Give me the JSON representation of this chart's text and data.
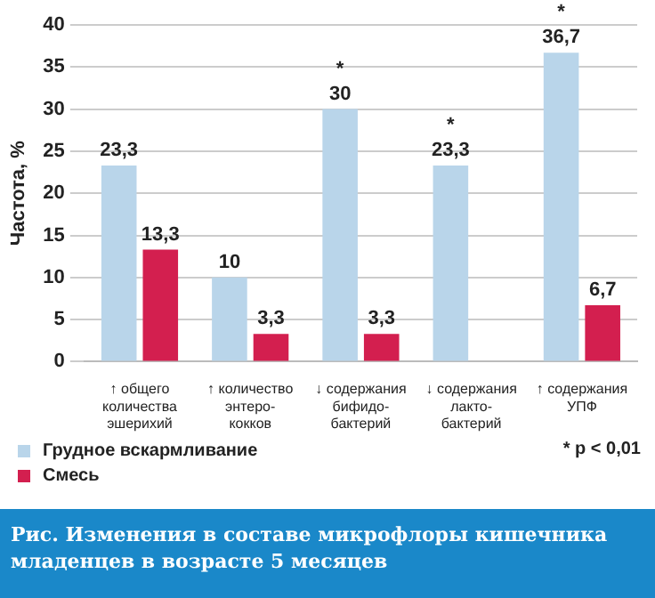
{
  "chart_data": {
    "type": "bar",
    "title": "Рис. Изменения в составе микрофлоры кишечника младенцев в возрасте 5 месяцев",
    "ylabel": "Частота, %",
    "categories": [
      "↑ общего\nколичества\nэшерихий",
      "↑ количество\nэнтеро-\nкокков",
      "↓ содержания\nбифидо-\nбактерий",
      "↓ содержания\nлакто-\nбактерий",
      "↑ содержания\nУПФ"
    ],
    "series": [
      {
        "name": "Грудное вскармливание",
        "color": "#b9d5ea",
        "values": [
          23.3,
          10,
          30,
          23.3,
          36.7
        ],
        "value_labels": [
          "23,3",
          "10",
          "30",
          "23,3",
          "36,7"
        ]
      },
      {
        "name": "Смесь",
        "color": "#d31f4f",
        "values": [
          13.3,
          3.3,
          3.3,
          null,
          6.7
        ],
        "value_labels": [
          "13,3",
          "3,3",
          "3,3",
          null,
          "6,7"
        ]
      }
    ],
    "ylim": [
      0,
      40
    ],
    "yticks": [
      0,
      5,
      10,
      15,
      20,
      25,
      30,
      35,
      40
    ],
    "grid": "y",
    "legend": "bottom left",
    "annotations": [
      {
        "text": "*",
        "x": "↓ содержания\nбифидо-\nбактерий",
        "y": 30
      },
      {
        "text": "*",
        "x": "↓ содержания\nлакто-\nбактерий",
        "y": 23.3
      },
      {
        "text": "*",
        "x": "↑ содержания\nУПФ",
        "y": 36.7
      },
      "* p < 0,01"
    ]
  }
}
